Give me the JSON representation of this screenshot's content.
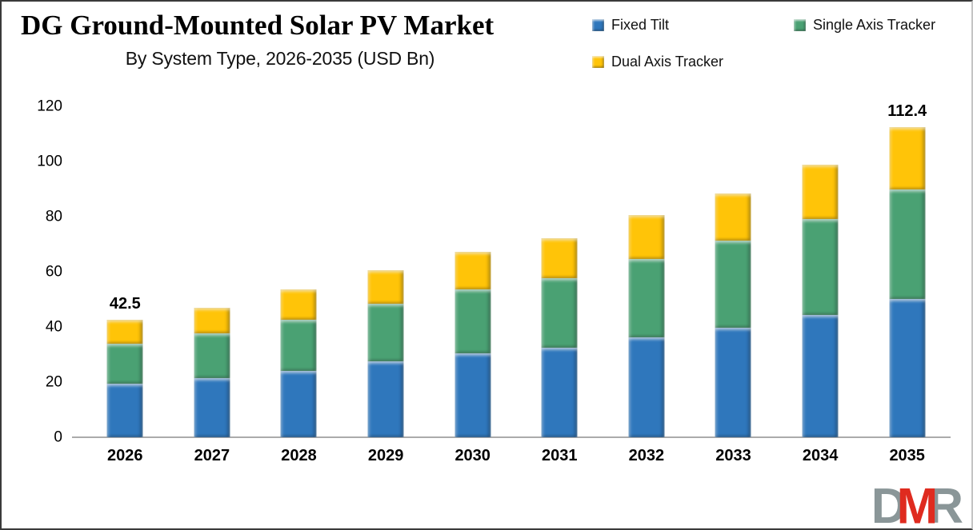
{
  "header": {
    "title": "DG Ground-Mounted Solar PV Market",
    "subtitle": "By System Type, 2026-2035 (USD Bn)"
  },
  "legend": {
    "items": [
      {
        "label": "Fixed Tilt",
        "color": "#2F77BC"
      },
      {
        "label": "Single Axis Tracker",
        "color": "#4AA173"
      },
      {
        "label": "Dual Axis Tracker",
        "color": "#FFC408"
      }
    ]
  },
  "chart_data": {
    "type": "bar",
    "stacked": true,
    "title": "DG Ground-Mounted Solar PV Market",
    "subtitle": "By System Type, 2026-2035 (USD Bn)",
    "categories": [
      "2026",
      "2027",
      "2028",
      "2029",
      "2030",
      "2031",
      "2032",
      "2033",
      "2034",
      "2035"
    ],
    "series": [
      {
        "name": "Fixed Tilt",
        "color": "#2F77BC",
        "values": [
          19.4,
          21.4,
          24.1,
          27.5,
          30.4,
          32.5,
          36.2,
          39.7,
          44.3,
          50.1
        ]
      },
      {
        "name": "Single Axis Tracker",
        "color": "#4AA173",
        "values": [
          14.6,
          16.3,
          18.5,
          21.0,
          23.2,
          25.2,
          28.4,
          31.6,
          34.8,
          39.8
        ]
      },
      {
        "name": "Dual Axis Tracker",
        "color": "#FFC408",
        "values": [
          8.5,
          9.3,
          11.0,
          12.0,
          13.6,
          14.5,
          16.0,
          17.1,
          19.8,
          22.5
        ]
      }
    ],
    "totals": [
      42.5,
      47.0,
      53.6,
      60.5,
      67.2,
      72.2,
      80.6,
      88.4,
      98.9,
      112.4
    ],
    "bar_labels": [
      {
        "index": 0,
        "text": "42.5"
      },
      {
        "index": 9,
        "text": "112.4"
      }
    ],
    "xlabel": "",
    "ylabel": "",
    "ylim": [
      0,
      120
    ],
    "yticks": [
      "0",
      "20",
      "40",
      "60",
      "80",
      "100",
      "120"
    ],
    "grid": false,
    "legend_position": "top-right"
  },
  "logo": {
    "d": "D",
    "m": "M",
    "r": "R",
    "gray": "#8A9698",
    "red": "#DF2B1F"
  }
}
